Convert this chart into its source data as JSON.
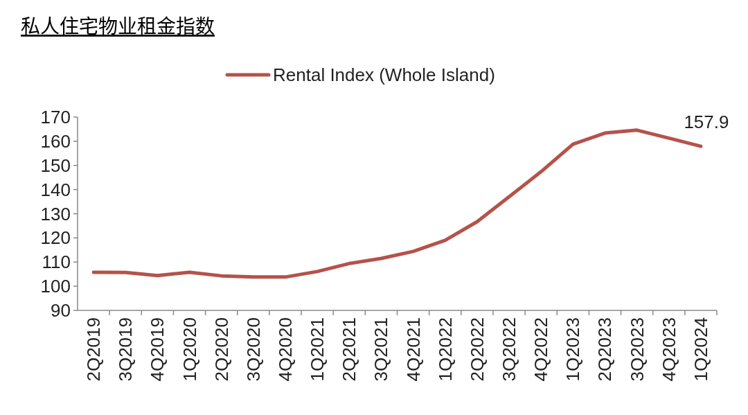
{
  "chart_data": {
    "type": "line",
    "title": "私人住宅物业租金指数",
    "categories": [
      "2Q2019",
      "3Q2019",
      "4Q2019",
      "1Q2020",
      "2Q2020",
      "3Q2020",
      "4Q2020",
      "1Q2021",
      "2Q2021",
      "3Q2021",
      "4Q2021",
      "1Q2022",
      "2Q2022",
      "3Q2022",
      "4Q2022",
      "1Q2023",
      "2Q2023",
      "3Q2023",
      "4Q2023",
      "1Q2024"
    ],
    "series": [
      {
        "name": "Rental Index (Whole Island)",
        "color": "#b5524a",
        "values": [
          105.8,
          105.7,
          104.4,
          105.8,
          104.3,
          103.8,
          103.8,
          106.1,
          109.4,
          111.5,
          114.4,
          119,
          126.7,
          137,
          147.4,
          158.8,
          163.4,
          164.6,
          161.3,
          157.9
        ]
      }
    ],
    "ylim": [
      90,
      170
    ],
    "yticks": [
      90,
      100,
      110,
      120,
      130,
      140,
      150,
      160,
      170
    ],
    "grid": false,
    "legend": "top",
    "marker": "none",
    "line_style": "solid",
    "annotations": [
      {
        "text": "157.9",
        "x": "1Q2024",
        "y": 157.9
      }
    ]
  }
}
